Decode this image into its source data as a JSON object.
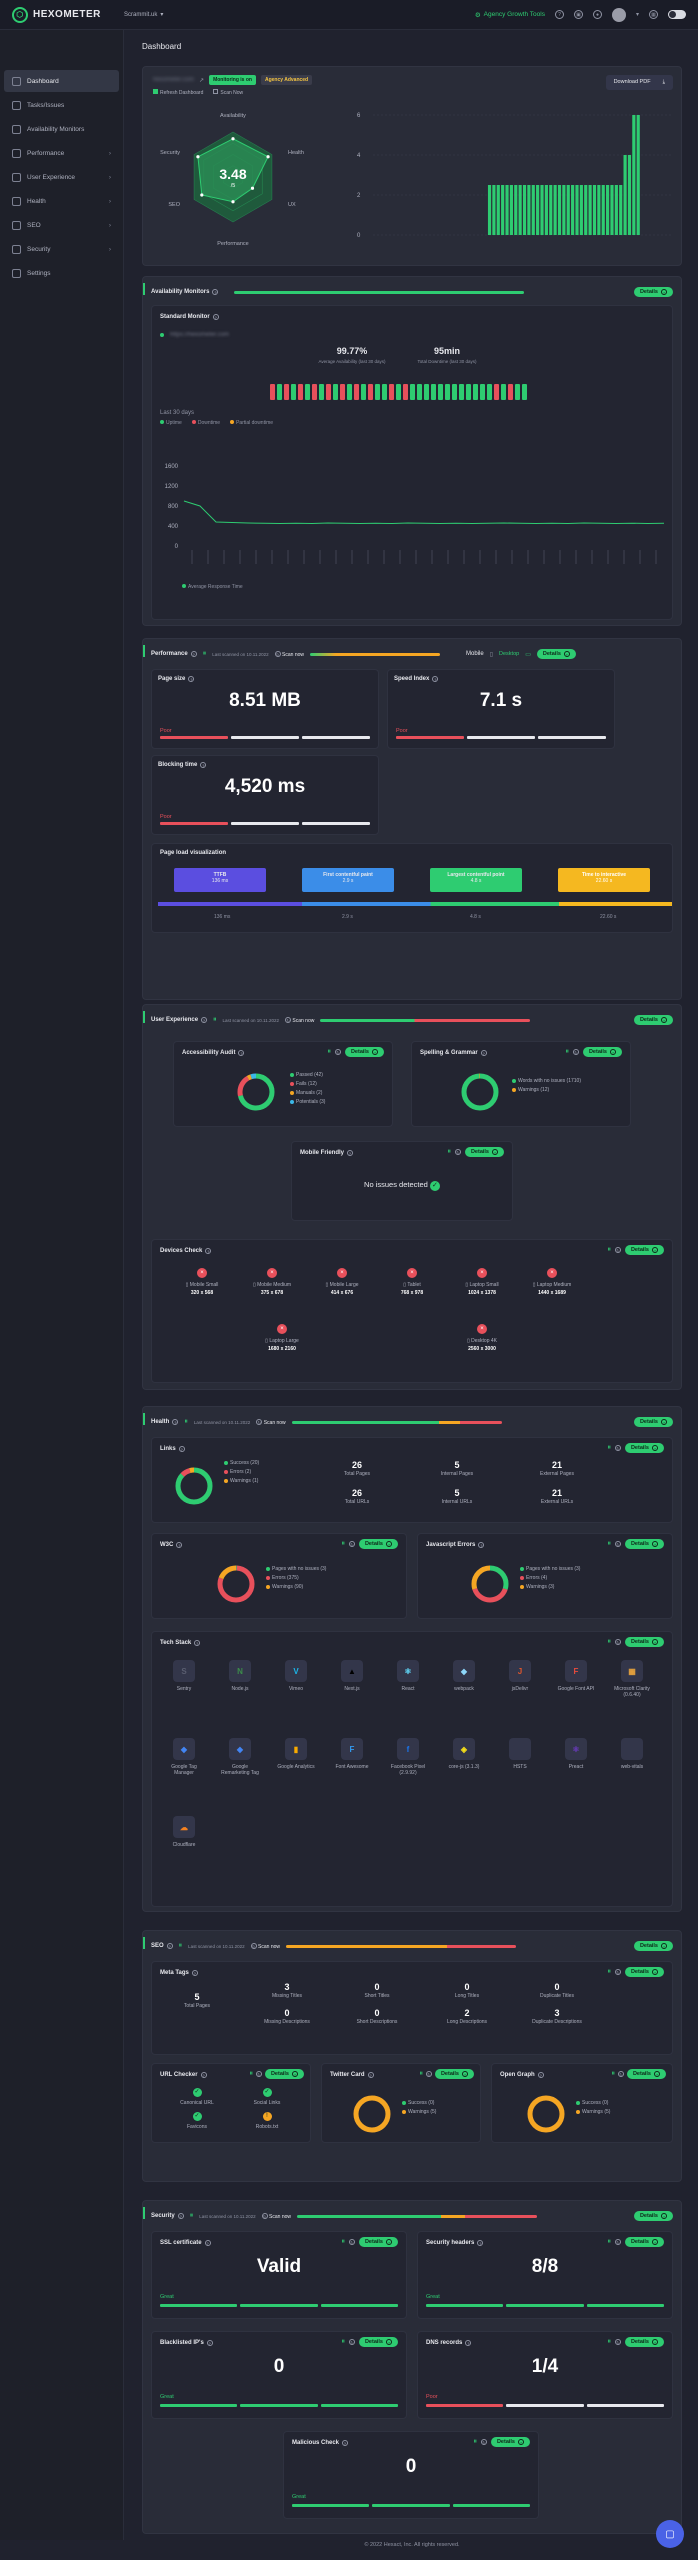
{
  "app": {
    "logo": "HEXOMETER",
    "workspace": "Scrammit.uk",
    "tools": "Agency Growth Tools"
  },
  "sidebar": {
    "items": [
      {
        "label": "Dashboard",
        "icon": "grid-icon",
        "active": true
      },
      {
        "label": "Tasks/Issues",
        "icon": "tasks-icon"
      },
      {
        "label": "Availability Monitors",
        "icon": "monitor-icon"
      },
      {
        "label": "Performance",
        "icon": "speed-icon",
        "chevron": true
      },
      {
        "label": "User Experience",
        "icon": "user-icon",
        "chevron": true
      },
      {
        "label": "Health",
        "icon": "heart-icon",
        "chevron": true
      },
      {
        "label": "SEO",
        "icon": "seo-icon",
        "chevron": true
      },
      {
        "label": "Security",
        "icon": "shield-icon",
        "chevron": true
      },
      {
        "label": "Settings",
        "icon": "gear-icon"
      }
    ]
  },
  "header": {
    "title": "Dashboard",
    "domain": "hexometer.com",
    "monitoring": "Monitoring is on",
    "plan": "Agency Advanced",
    "refresh": "Refresh Dashboard",
    "scan": "Scan Now",
    "download": "Download PDF"
  },
  "overview": {
    "score": "3.48",
    "score_unit": "/5",
    "labels": [
      "Availability",
      "Health",
      "UX",
      "Performance",
      "SEO",
      "Security"
    ],
    "bar_ticks": [
      "6",
      "4",
      "2",
      "0"
    ],
    "bars": [
      0,
      0,
      0,
      0,
      0,
      0,
      0,
      0,
      0,
      0,
      0,
      0,
      0,
      0,
      0,
      0,
      0,
      0,
      0,
      0,
      0,
      0,
      0,
      0,
      2.5,
      2.5,
      2.5,
      2.5,
      2.5,
      2.5,
      2.5,
      2.5,
      2.5,
      2.5,
      2.5,
      2.5,
      2.5,
      2.5,
      2.5,
      2.5,
      2.5,
      2.5,
      2.5,
      2.5,
      2.5,
      2.5,
      2.5,
      2.5,
      2.5,
      2.5,
      2.5,
      2.5,
      2.5,
      2.5,
      2.5,
      4,
      4,
      6,
      6
    ]
  },
  "availability": {
    "title": "Availability Monitors",
    "details": "Details",
    "monitor_title": "Standard Monitor",
    "url": "https://hexometer.com",
    "avg": "99.77%",
    "avg_label": "Average Availability (last 30 days)",
    "down": "95min",
    "down_label": "Total Downtime (last 30 days)",
    "legend": [
      "Uptime",
      "Downtime",
      "Partial downtime"
    ],
    "last": "Last 30 days",
    "y_ticks": [
      "1600",
      "1200",
      "800",
      "400",
      "0"
    ],
    "resp_label": "Average Response Time"
  },
  "performance": {
    "title": "Performance",
    "last_scan": "Last scanned on 10.11.2022",
    "scan_now": "Scan now",
    "device": "Mobile",
    "desktop": "Desktop",
    "details": "Details",
    "page_size": {
      "label": "Page size",
      "value": "8.51 MB",
      "grade": "Poor"
    },
    "speed_index": {
      "label": "Speed Index",
      "value": "7.1 s",
      "grade": "Poor"
    },
    "blocking": {
      "label": "Blocking time",
      "value": "4,520 ms",
      "grade": "Poor"
    },
    "visual": {
      "title": "Page load visualization",
      "ttfb": "TTFB",
      "ttfb_v": "136 ms",
      "fcp": "First contentful paint",
      "fcp_v": "2.9 s",
      "lcp": "Largest contentful point",
      "lcp_v": "4.8 s",
      "tti": "Time to interactive",
      "tti_v": "22.60 s",
      "marks": [
        "136 ms",
        "2.9 s",
        "4.8 s",
        "22.60 s"
      ]
    }
  },
  "ux": {
    "title": "User Experience",
    "last_scan": "Last scanned on 10.11.2022",
    "scan_now": "Scan now",
    "details": "Details",
    "accessibility": {
      "title": "Accessibility Audit",
      "items": [
        "Passed (42)",
        "Fails (12)",
        "Manuals (2)",
        "Potentials (3)"
      ]
    },
    "spelling": {
      "title": "Spelling & Grammar",
      "items": [
        "Words with no issues (1710)",
        "Warnings (12)"
      ]
    },
    "mobile": {
      "title": "Mobile Friendly",
      "text": "No issues detected"
    },
    "devices": {
      "title": "Devices Check",
      "list": [
        {
          "n": "Mobile Small",
          "s": "320 x 568"
        },
        {
          "n": "Mobile Medium",
          "s": "375 x 678"
        },
        {
          "n": "Mobile Large",
          "s": "414 x 676"
        },
        {
          "n": "Tablet",
          "s": "768 x 978"
        },
        {
          "n": "Laptop Small",
          "s": "1024 x 1378"
        },
        {
          "n": "Laptop Medium",
          "s": "1440 x 1689"
        },
        {
          "n": "Laptop Large",
          "s": "1680 x 2160"
        },
        {
          "n": "Desktop 4K",
          "s": "2560 x 3000"
        }
      ]
    }
  },
  "health": {
    "title": "Health",
    "last_scan": "Last scanned on 10.11.2022",
    "scan_now": "Scan now",
    "details": "Details",
    "links": {
      "title": "Links",
      "items": [
        "Success (20)",
        "Errors (2)",
        "Warnings (1)"
      ],
      "stats": [
        {
          "n": "26",
          "t": "Total Pages"
        },
        {
          "n": "26",
          "t": "Total URLs"
        },
        {
          "n": "5",
          "t": "Internal Pages"
        },
        {
          "n": "5",
          "t": "Internal URLs"
        },
        {
          "n": "21",
          "t": "External Pages"
        },
        {
          "n": "21",
          "t": "External URLs"
        }
      ]
    },
    "w3c": {
      "title": "W3C",
      "items": [
        "Pages with no issues (3)",
        "Errors (375)",
        "Warnings (90)"
      ]
    },
    "js": {
      "title": "Javascript Errors",
      "items": [
        "Pages with no issues (3)",
        "Errors (4)",
        "Warnings (3)"
      ]
    },
    "tech": {
      "title": "Tech Stack",
      "list": [
        {
          "n": "Sentry",
          "g": "S"
        },
        {
          "n": "Node.js",
          "g": "N"
        },
        {
          "n": "Vimeo",
          "g": "V"
        },
        {
          "n": "Next.js",
          "g": "▲"
        },
        {
          "n": "React",
          "g": "⚛"
        },
        {
          "n": "webpack",
          "g": "◆"
        },
        {
          "n": "jsDelivr",
          "g": "J"
        },
        {
          "n": "Google Font API",
          "g": "F"
        },
        {
          "n": "Microsoft Clarity (0.6.40)",
          "g": "▦"
        },
        {
          "n": "Google Tag Manager",
          "g": "◆"
        },
        {
          "n": "Google Remarketing Tag",
          "g": "◆"
        },
        {
          "n": "Google Analytics",
          "g": "▮"
        },
        {
          "n": "Font Awesome",
          "g": "F"
        },
        {
          "n": "Facebook Pixel (2.9.92)",
          "g": "f"
        },
        {
          "n": "core-js (3.1.3)",
          "g": "◈"
        },
        {
          "n": "HSTS",
          "g": ""
        },
        {
          "n": "Preact",
          "g": "⚛"
        },
        {
          "n": "web-vitals",
          "g": ""
        },
        {
          "n": "Cloudflare",
          "g": "☁"
        }
      ]
    }
  },
  "seo": {
    "title": "SEO",
    "last_scan": "Last scanned on 10.11.2022",
    "scan_now": "Scan now",
    "details": "Details",
    "meta": {
      "title": "Meta Tags",
      "stats": [
        {
          "n": "5",
          "t": "Total Pages"
        },
        {
          "n": "3",
          "t": "Missing Titles"
        },
        {
          "n": "0",
          "t": "Short Titles"
        },
        {
          "n": "0",
          "t": "Long Titles"
        },
        {
          "n": "0",
          "t": "Duplicate Titles"
        },
        {
          "n": "0",
          "t": "Missing Descriptions"
        },
        {
          "n": "0",
          "t": "Short Descriptions"
        },
        {
          "n": "2",
          "t": "Long Descriptions"
        },
        {
          "n": "3",
          "t": "Duplicate Descriptions"
        }
      ]
    },
    "url": {
      "title": "URL Checker",
      "items": [
        "Canonical URL",
        "Social Links",
        "Favicons",
        "Robots.txt"
      ]
    },
    "twitter": {
      "title": "Twitter Card",
      "items": [
        "Success (0)",
        "Warnings (5)"
      ]
    },
    "og": {
      "title": "Open Graph",
      "items": [
        "Success (0)",
        "Warnings (5)"
      ]
    }
  },
  "security": {
    "title": "Security",
    "last_scan": "Last scanned on 10.11.2022",
    "scan_now": "Scan now",
    "details": "Details",
    "ssl": {
      "title": "SSL certificate",
      "value": "Valid",
      "grade": "Great"
    },
    "headers": {
      "title": "Security headers",
      "value": "8/8",
      "grade": "Great"
    },
    "blacklist": {
      "title": "Blacklisted IP's",
      "value": "0",
      "grade": "Great"
    },
    "dns": {
      "title": "DNS records",
      "value": "1/4",
      "grade": "Poor"
    },
    "malicious": {
      "title": "Malicious Check",
      "value": "0",
      "grade": "Great"
    }
  },
  "footer": "© 2022 Hexact, Inc. All rights reserved.",
  "colors": {
    "green": "#2ecc71",
    "red": "#e8505b",
    "orange": "#f5a623",
    "bg": "#20222e"
  }
}
